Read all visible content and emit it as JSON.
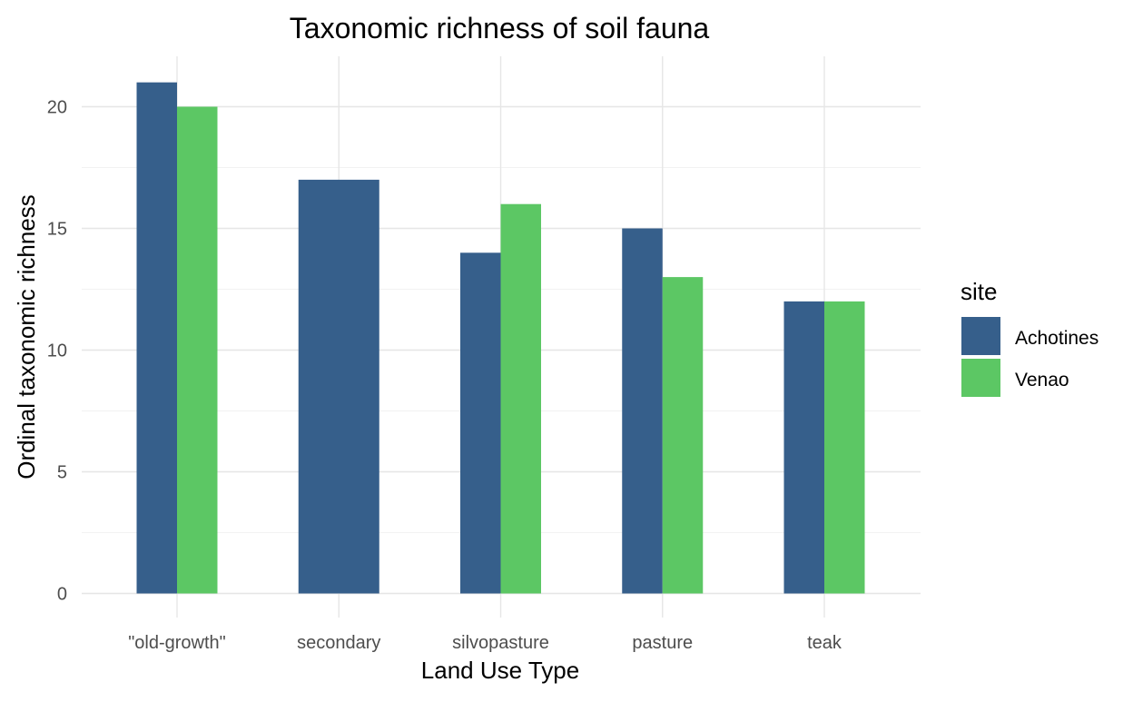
{
  "chart_data": {
    "type": "bar",
    "title": "Taxonomic richness of soil fauna",
    "xlabel": "Land Use Type",
    "ylabel": "Ordinal taxonomic richness",
    "categories": [
      "\"old-growth\"",
      "secondary",
      "silvopasture",
      "pasture",
      "teak"
    ],
    "series": [
      {
        "name": "Achotines",
        "values": [
          21,
          17,
          null,
          15,
          12
        ],
        "color": "#365f8b"
      },
      {
        "name": "Venao",
        "values": [
          20,
          null,
          16,
          13,
          12
        ],
        "color": "#5cc764"
      }
    ],
    "series_note_values": {
      "silvopasture_Achotines": 14
    },
    "ylim": [
      0,
      21.9
    ],
    "yticks": [
      0,
      5,
      10,
      15,
      20
    ],
    "grid": true,
    "legend": {
      "title": "site",
      "position": "right"
    }
  }
}
